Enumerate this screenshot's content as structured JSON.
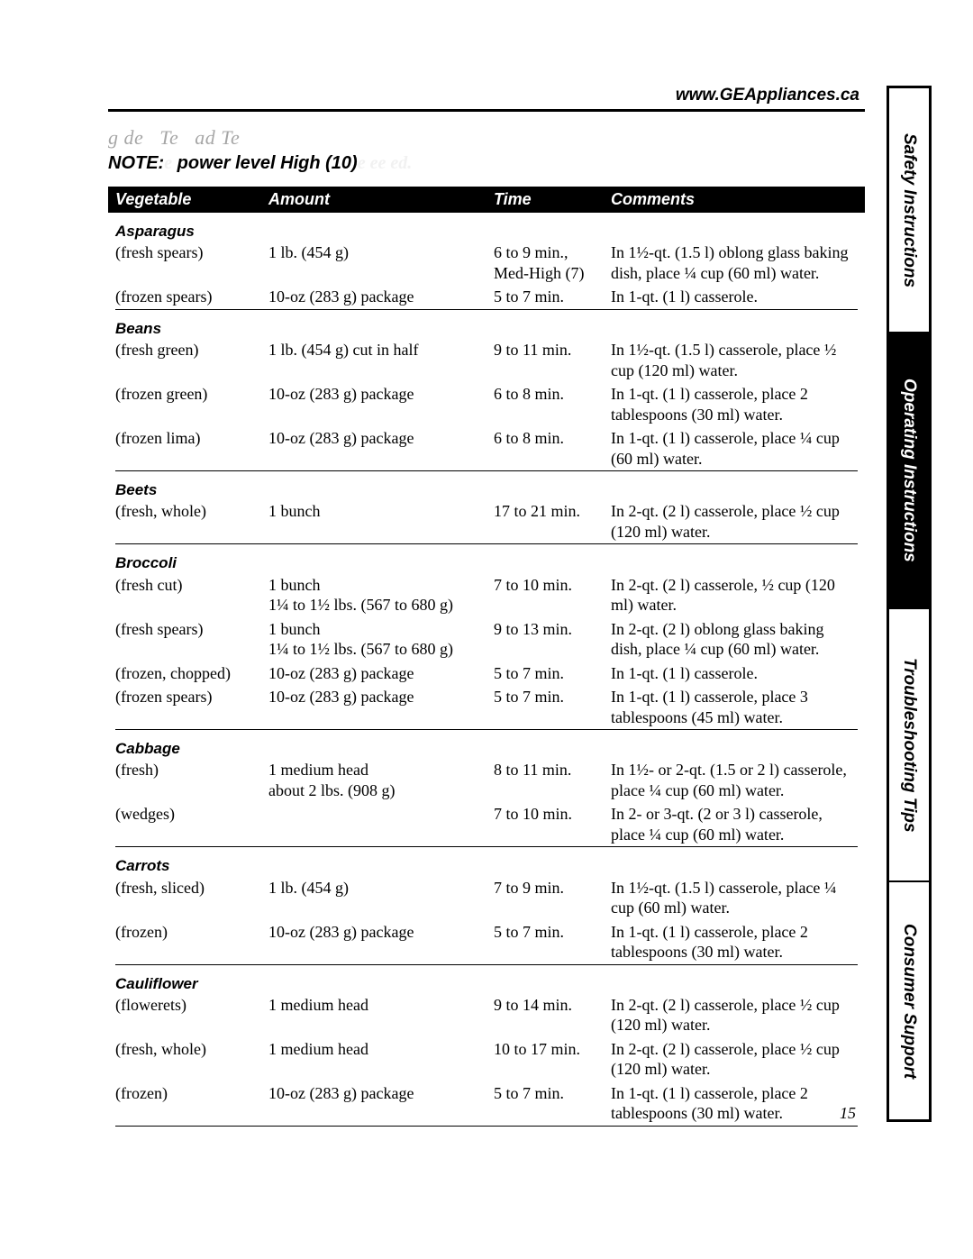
{
  "header": {
    "url": "www.GEAppliances.ca",
    "subtitle_parts": [
      "g de",
      "Te",
      "ad Te"
    ],
    "note_prefix": "NOTE:",
    "note_faded1": "e",
    "note_bold": " power level High (10)",
    "note_faded2": "e  ee  ed."
  },
  "columns": {
    "vegetable": "Vegetable",
    "amount": "Amount",
    "time": "Time",
    "comments": "Comments"
  },
  "groups": [
    {
      "title": "Asparagus",
      "rows": [
        {
          "veg": "(fresh spears)",
          "amt": "1 lb. (454 g)",
          "time": "6 to 9 min., Med-High (7)",
          "com": "In 1½-qt. (1.5 l) oblong glass baking dish, place ¼ cup (60 ml) water."
        },
        {
          "veg": "(frozen spears)",
          "amt": "10-oz (283 g) package",
          "time": "5 to 7 min.",
          "com": "In 1-qt. (1 l) casserole."
        }
      ]
    },
    {
      "title": "Beans",
      "rows": [
        {
          "veg": "(fresh green)",
          "amt": "1 lb. (454 g) cut in half",
          "time": "9 to 11 min.",
          "com": "In 1½-qt. (1.5 l) casserole, place ½ cup (120 ml) water."
        },
        {
          "veg": "(frozen green)",
          "amt": "10-oz (283 g) package",
          "time": "6 to 8 min.",
          "com": "In 1-qt. (1 l) casserole, place 2 tablespoons (30 ml) water."
        },
        {
          "veg": "(frozen lima)",
          "amt": "10-oz (283 g) package",
          "time": "6 to 8 min.",
          "com": "In 1-qt. (1 l) casserole, place ¼ cup (60 ml) water."
        }
      ]
    },
    {
      "title": "Beets",
      "rows": [
        {
          "veg": "(fresh, whole)",
          "amt": "1 bunch",
          "time": "17 to 21 min.",
          "com": "In 2-qt. (2 l) casserole, place ½ cup (120 ml) water."
        }
      ]
    },
    {
      "title": "Broccoli",
      "rows": [
        {
          "veg": "(fresh cut)",
          "amt": "1 bunch\n1¼ to 1½ lbs. (567 to 680 g)",
          "time": "7 to 10 min.",
          "com": "In 2-qt. (2 l) casserole, ½ cup (120 ml) water."
        },
        {
          "veg": "(fresh spears)",
          "amt": "1 bunch\n1¼ to 1½ lbs. (567 to 680 g)",
          "time": "9 to 13 min.",
          "com": "In 2-qt. (2 l) oblong glass baking dish, place ¼ cup (60 ml) water."
        },
        {
          "veg": "(frozen, chopped)",
          "amt": "10-oz (283 g) package",
          "time": "5 to 7 min.",
          "com": "In 1-qt. (1 l) casserole."
        },
        {
          "veg": "(frozen spears)",
          "amt": "10-oz (283 g) package",
          "time": "5 to 7 min.",
          "com": "In 1-qt. (1 l) casserole, place 3 tablespoons (45 ml) water."
        }
      ]
    },
    {
      "title": "Cabbage",
      "rows": [
        {
          "veg": "(fresh)",
          "amt": "1 medium head\nabout 2 lbs. (908 g)",
          "time": "8 to 11 min.",
          "com": "In 1½- or 2-qt. (1.5 or 2 l) casserole, place ¼ cup (60 ml) water."
        },
        {
          "veg": "(wedges)",
          "amt": "",
          "time": "7 to 10 min.",
          "com": "In 2- or 3-qt. (2 or 3 l) casserole, place ¼ cup (60 ml) water."
        }
      ]
    },
    {
      "title": "Carrots",
      "rows": [
        {
          "veg": "(fresh, sliced)",
          "amt": "1 lb. (454 g)",
          "time": "7 to 9 min.",
          "com": "In 1½-qt. (1.5 l) casserole, place ¼ cup (60 ml) water."
        },
        {
          "veg": "(frozen)",
          "amt": "10-oz (283 g) package",
          "time": "5 to 7 min.",
          "com": "In 1-qt. (1 l) casserole, place 2 tablespoons (30 ml) water."
        }
      ]
    },
    {
      "title": "Cauliflower",
      "rows": [
        {
          "veg": "(flowerets)",
          "amt": "1 medium head",
          "time": "9 to 14 min.",
          "com": "In 2-qt. (2 l) casserole, place ½ cup (120 ml) water."
        },
        {
          "veg": "(fresh, whole)",
          "amt": "1 medium head",
          "time": "10 to 17 min.",
          "com": "In 2-qt. (2 l) casserole, place ½ cup (120 ml) water."
        },
        {
          "veg": "(frozen)",
          "amt": "10-oz (283 g) package",
          "time": "5 to 7 min.",
          "com": "In 1-qt. (1 l) casserole, place 2 tablespoons (30 ml) water."
        }
      ]
    }
  ],
  "page_number": "15",
  "tabs": [
    {
      "label": "Safety Instructions",
      "active": false
    },
    {
      "label": "Operating Instructions",
      "active": true
    },
    {
      "label": "Troubleshooting Tips",
      "active": false
    },
    {
      "label": "Consumer Support",
      "active": false
    }
  ]
}
